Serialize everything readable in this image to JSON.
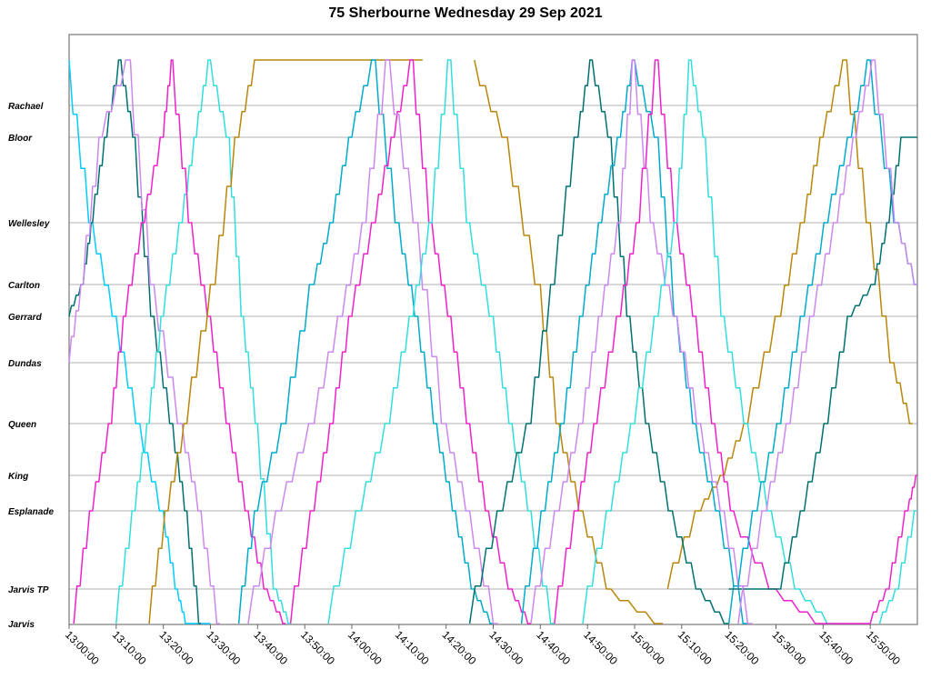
{
  "chart_data": {
    "type": "line",
    "title": "75 Sherbourne Wednesday 29 Sep 2021",
    "xlabel": "",
    "ylabel": "",
    "x_range": [
      "13:00:00",
      "16:00:00"
    ],
    "x_ticks": [
      "13:00:00",
      "13:10:00",
      "13:20:00",
      "13:30:00",
      "13:40:00",
      "13:50:00",
      "14:00:00",
      "14:10:00",
      "14:20:00",
      "14:30:00",
      "14:40:00",
      "14:50:00",
      "15:00:00",
      "15:10:00",
      "15:20:00",
      "15:30:00",
      "15:40:00",
      "15:50:00"
    ],
    "y_stops": [
      "Jarvis",
      "Jarvis TP",
      "Esplanade",
      "King",
      "Queen",
      "Dundas",
      "Gerrard",
      "Carlton",
      "Wellesley",
      "Bloor",
      "Rachael"
    ],
    "grid": true,
    "series": [
      {
        "color": "#00CCFF",
        "points": [
          [
            "13:00",
            "Rachael"
          ],
          [
            "13:05",
            "Wellesley"
          ],
          [
            "13:10",
            "Gerrard"
          ],
          [
            "13:15",
            "Queen"
          ],
          [
            "13:20",
            "Esplanade"
          ],
          [
            "13:23",
            "Jarvis TP"
          ],
          [
            "13:25",
            "Jarvis"
          ],
          [
            "13:30",
            "Jarvis"
          ]
        ]
      },
      {
        "color": "#007070",
        "points": [
          [
            "13:00",
            "Gerrard"
          ],
          [
            "13:03",
            "Carlton"
          ],
          [
            "13:05",
            "Wellesley"
          ],
          [
            "13:08",
            "Bloor"
          ],
          [
            "13:11",
            "Rachael"
          ],
          [
            "13:14",
            "Bloor"
          ],
          [
            "13:18",
            "Gerrard"
          ],
          [
            "13:22",
            "Queen"
          ],
          [
            "13:25",
            "Esplanade"
          ],
          [
            "13:28",
            "Jarvis"
          ]
        ]
      },
      {
        "color": "#CC88EE",
        "points": [
          [
            "13:00",
            "Dundas"
          ],
          [
            "13:03",
            "Carlton"
          ],
          [
            "13:07",
            "Bloor"
          ],
          [
            "13:13",
            "Rachael"
          ],
          [
            "13:18",
            "Carlton"
          ],
          [
            "13:24",
            "Queen"
          ],
          [
            "13:28",
            "Esplanade"
          ],
          [
            "13:32",
            "Jarvis"
          ]
        ]
      },
      {
        "color": "#33DDDD",
        "points": [
          [
            "13:10",
            "Jarvis"
          ],
          [
            "13:14",
            "Esplanade"
          ],
          [
            "13:17",
            "Queen"
          ],
          [
            "13:20",
            "Gerrard"
          ],
          [
            "13:24",
            "Wellesley"
          ],
          [
            "13:27",
            "Bloor"
          ],
          [
            "13:30",
            "Rachael"
          ],
          [
            "13:34",
            "Bloor"
          ],
          [
            "13:37",
            "Gerrard"
          ],
          [
            "13:40",
            "Queen"
          ],
          [
            "13:44",
            "Jarvis TP"
          ],
          [
            "13:47",
            "Jarvis"
          ]
        ]
      },
      {
        "color": "#EE22CC",
        "points": [
          [
            "13:01",
            "Jarvis"
          ],
          [
            "13:05",
            "Esplanade"
          ],
          [
            "13:09",
            "Queen"
          ],
          [
            "13:12",
            "Gerrard"
          ],
          [
            "13:16",
            "Wellesley"
          ],
          [
            "13:20",
            "Bloor"
          ],
          [
            "13:22",
            "Rachael"
          ],
          [
            "13:26",
            "Wellesley"
          ],
          [
            "13:30",
            "Gerrard"
          ],
          [
            "13:34",
            "Queen"
          ],
          [
            "13:38",
            "Esplanade"
          ],
          [
            "13:42",
            "Jarvis TP"
          ],
          [
            "13:46",
            "Jarvis"
          ]
        ]
      },
      {
        "color": "#B8860B",
        "points": [
          [
            "13:17",
            "Jarvis"
          ],
          [
            "13:21",
            "Esplanade"
          ],
          [
            "13:25",
            "Queen"
          ],
          [
            "13:31",
            "Carlton"
          ],
          [
            "13:36",
            "Bloor"
          ],
          [
            "13:40",
            "Rachael"
          ],
          [
            "14:15",
            "Rachael"
          ]
        ]
      },
      {
        "color": "#B8860B",
        "points": [
          [
            "14:26",
            "Rachael"
          ],
          [
            "14:33",
            "Bloor"
          ],
          [
            "14:40",
            "Carlton"
          ],
          [
            "14:44",
            "Queen"
          ],
          [
            "14:49",
            "Esplanade"
          ],
          [
            "14:55",
            "Jarvis TP"
          ],
          [
            "15:06",
            "Jarvis"
          ]
        ]
      },
      {
        "color": "#B8860B",
        "points": [
          [
            "15:07",
            "Jarvis TP"
          ],
          [
            "15:14",
            "Esplanade"
          ],
          [
            "15:19",
            "King"
          ],
          [
            "15:24",
            "Queen"
          ],
          [
            "15:31",
            "Gerrard"
          ],
          [
            "15:36",
            "Wellesley"
          ],
          [
            "15:40",
            "Bloor"
          ],
          [
            "15:45",
            "Rachael"
          ],
          [
            "15:50",
            "Wellesley"
          ],
          [
            "15:55",
            "Dundas"
          ],
          [
            "15:59",
            "Queen"
          ]
        ]
      },
      {
        "color": "#00AACC",
        "points": [
          [
            "13:36",
            "Jarvis"
          ],
          [
            "13:40",
            "Esplanade"
          ],
          [
            "13:46",
            "Queen"
          ],
          [
            "13:52",
            "Carlton"
          ],
          [
            "13:56",
            "Wellesley"
          ],
          [
            "14:00",
            "Bloor"
          ],
          [
            "14:05",
            "Rachael"
          ],
          [
            "14:10",
            "Wellesley"
          ],
          [
            "14:14",
            "Gerrard"
          ],
          [
            "14:18",
            "Queen"
          ],
          [
            "14:22",
            "Esplanade"
          ],
          [
            "14:26",
            "Jarvis TP"
          ],
          [
            "14:30",
            "Jarvis"
          ]
        ]
      },
      {
        "color": "#EE22CC",
        "points": [
          [
            "13:47",
            "Jarvis"
          ],
          [
            "13:52",
            "Esplanade"
          ],
          [
            "13:56",
            "Queen"
          ],
          [
            "14:00",
            "Gerrard"
          ],
          [
            "14:05",
            "Wellesley"
          ],
          [
            "14:09",
            "Bloor"
          ],
          [
            "14:13",
            "Rachael"
          ],
          [
            "14:17",
            "Wellesley"
          ],
          [
            "14:21",
            "Gerrard"
          ],
          [
            "14:25",
            "Queen"
          ],
          [
            "14:29",
            "Esplanade"
          ],
          [
            "14:34",
            "Jarvis TP"
          ],
          [
            "14:38",
            "Jarvis"
          ]
        ]
      },
      {
        "color": "#CC88EE",
        "points": [
          [
            "13:38",
            "Jarvis"
          ],
          [
            "13:45",
            "Esplanade"
          ],
          [
            "13:52",
            "Queen"
          ],
          [
            "13:58",
            "Gerrard"
          ],
          [
            "14:03",
            "Wellesley"
          ],
          [
            "14:08",
            "Rachael"
          ],
          [
            "14:14",
            "Wellesley"
          ],
          [
            "14:20",
            "Queen"
          ],
          [
            "14:25",
            "Esplanade"
          ],
          [
            "14:31",
            "Jarvis"
          ]
        ]
      },
      {
        "color": "#33DDDD",
        "points": [
          [
            "13:55",
            "Jarvis"
          ],
          [
            "14:02",
            "Esplanade"
          ],
          [
            "14:08",
            "Queen"
          ],
          [
            "14:13",
            "Gerrard"
          ],
          [
            "14:17",
            "Wellesley"
          ],
          [
            "14:21",
            "Rachael"
          ],
          [
            "14:25",
            "Wellesley"
          ],
          [
            "14:30",
            "Gerrard"
          ],
          [
            "14:34",
            "Queen"
          ],
          [
            "14:38",
            "Esplanade"
          ],
          [
            "14:43",
            "Jarvis"
          ]
        ]
      },
      {
        "color": "#007070",
        "points": [
          [
            "14:25",
            "Jarvis"
          ],
          [
            "14:32",
            "Esplanade"
          ],
          [
            "14:38",
            "Queen"
          ],
          [
            "14:43",
            "Carlton"
          ],
          [
            "14:48",
            "Bloor"
          ],
          [
            "14:51",
            "Rachael"
          ],
          [
            "14:55",
            "Bloor"
          ],
          [
            "14:59",
            "Gerrard"
          ],
          [
            "15:03",
            "Queen"
          ],
          [
            "15:08",
            "Esplanade"
          ],
          [
            "15:14",
            "Jarvis TP"
          ],
          [
            "15:20",
            "Jarvis"
          ]
        ]
      },
      {
        "color": "#00AACC",
        "points": [
          [
            "14:36",
            "Jarvis"
          ],
          [
            "14:41",
            "Esplanade"
          ],
          [
            "14:45",
            "Queen"
          ],
          [
            "14:49",
            "Gerrard"
          ],
          [
            "14:53",
            "Wellesley"
          ],
          [
            "14:57",
            "Bloor"
          ],
          [
            "15:00",
            "Rachael"
          ],
          [
            "15:05",
            "Bloor"
          ],
          [
            "15:09",
            "Gerrard"
          ],
          [
            "15:13",
            "Queen"
          ],
          [
            "15:18",
            "Esplanade"
          ],
          [
            "15:24",
            "Jarvis"
          ]
        ]
      },
      {
        "color": "#CC88EE",
        "points": [
          [
            "14:38",
            "Jarvis"
          ],
          [
            "14:44",
            "Esplanade"
          ],
          [
            "14:49",
            "Queen"
          ],
          [
            "14:53",
            "Gerrard"
          ],
          [
            "14:57",
            "Wellesley"
          ],
          [
            "15:00",
            "Rachael"
          ],
          [
            "15:04",
            "Wellesley"
          ],
          [
            "15:09",
            "Gerrard"
          ],
          [
            "15:14",
            "Queen"
          ],
          [
            "15:19",
            "Esplanade"
          ],
          [
            "15:25",
            "Jarvis"
          ]
        ]
      },
      {
        "color": "#EE22CC",
        "points": [
          [
            "14:43",
            "Jarvis"
          ],
          [
            "14:48",
            "Esplanade"
          ],
          [
            "14:52",
            "Queen"
          ],
          [
            "14:57",
            "Gerrard"
          ],
          [
            "15:01",
            "Wellesley"
          ],
          [
            "15:05",
            "Rachael"
          ],
          [
            "15:09",
            "Wellesley"
          ],
          [
            "15:13",
            "Gerrard"
          ],
          [
            "15:17",
            "Queen"
          ],
          [
            "15:21",
            "Esplanade"
          ],
          [
            "15:30",
            "Jarvis TP"
          ],
          [
            "15:40",
            "Jarvis"
          ]
        ]
      },
      {
        "color": "#33DDDD",
        "points": [
          [
            "14:49",
            "Jarvis"
          ],
          [
            "14:55",
            "Esplanade"
          ],
          [
            "15:00",
            "Queen"
          ],
          [
            "15:05",
            "Gerrard"
          ],
          [
            "15:09",
            "Wellesley"
          ],
          [
            "15:12",
            "Rachael"
          ],
          [
            "15:15",
            "Bloor"
          ],
          [
            "15:19",
            "Gerrard"
          ],
          [
            "15:24",
            "Queen"
          ],
          [
            "15:29",
            "Esplanade"
          ],
          [
            "15:35",
            "Jarvis TP"
          ],
          [
            "15:42",
            "Jarvis"
          ]
        ]
      },
      {
        "color": "#00AACC",
        "points": [
          [
            "15:20",
            "Jarvis"
          ],
          [
            "15:26",
            "Esplanade"
          ],
          [
            "15:31",
            "Queen"
          ],
          [
            "15:36",
            "Gerrard"
          ],
          [
            "15:41",
            "Wellesley"
          ],
          [
            "15:46",
            "Bloor"
          ],
          [
            "15:50",
            "Rachael"
          ],
          [
            "15:56",
            "Wellesley"
          ],
          [
            "16:00",
            "Carlton"
          ]
        ]
      },
      {
        "color": "#007070",
        "points": [
          [
            "15:20",
            "Jarvis TP"
          ],
          [
            "15:31",
            "Jarvis TP"
          ],
          [
            "15:36",
            "Esplanade"
          ],
          [
            "15:41",
            "Queen"
          ],
          [
            "15:46",
            "Gerrard"
          ],
          [
            "15:51",
            "Carlton"
          ],
          [
            "15:54",
            "Wellesley"
          ],
          [
            "15:57",
            "Bloor"
          ],
          [
            "16:00",
            "Bloor"
          ]
        ]
      },
      {
        "color": "#CC88EE",
        "points": [
          [
            "15:22",
            "Jarvis"
          ],
          [
            "15:28",
            "Esplanade"
          ],
          [
            "15:33",
            "Queen"
          ],
          [
            "15:38",
            "Gerrard"
          ],
          [
            "15:43",
            "Wellesley"
          ],
          [
            "15:47",
            "Bloor"
          ],
          [
            "15:51",
            "Rachael"
          ],
          [
            "15:56",
            "Wellesley"
          ],
          [
            "16:00",
            "Carlton"
          ]
        ]
      },
      {
        "color": "#EE22CC",
        "points": [
          [
            "15:40",
            "Jarvis"
          ],
          [
            "15:50",
            "Jarvis"
          ],
          [
            "15:54",
            "Jarvis TP"
          ],
          [
            "15:58",
            "Esplanade"
          ],
          [
            "16:00",
            "King"
          ]
        ]
      },
      {
        "color": "#33DDDD",
        "points": [
          [
            "15:52",
            "Jarvis"
          ],
          [
            "15:56",
            "Jarvis TP"
          ],
          [
            "16:00",
            "Esplanade"
          ]
        ]
      }
    ]
  }
}
